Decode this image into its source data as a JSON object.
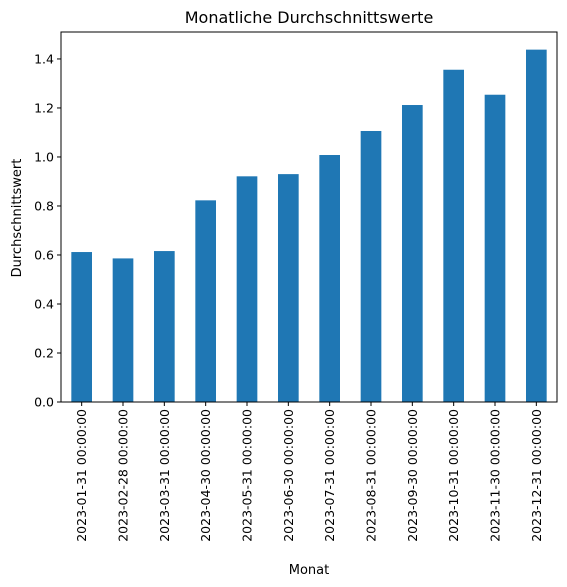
{
  "chart_data": {
    "type": "bar",
    "title": "Monatliche Durchschnittswerte",
    "xlabel": "Monat",
    "ylabel": "Durchschnittswert",
    "categories": [
      "2023-01-31 00:00:00",
      "2023-02-28 00:00:00",
      "2023-03-31 00:00:00",
      "2023-04-30 00:00:00",
      "2023-05-31 00:00:00",
      "2023-06-30 00:00:00",
      "2023-07-31 00:00:00",
      "2023-08-31 00:00:00",
      "2023-09-30 00:00:00",
      "2023-10-31 00:00:00",
      "2023-11-30 00:00:00",
      "2023-12-31 00:00:00"
    ],
    "values": [
      0.612,
      0.586,
      0.616,
      0.823,
      0.921,
      0.93,
      1.008,
      1.106,
      1.212,
      1.356,
      1.254,
      1.438
    ],
    "ylim": [
      0,
      1.51
    ],
    "yticks": [
      0.0,
      0.2,
      0.4,
      0.6,
      0.8,
      1.0,
      1.2,
      1.4
    ],
    "ytick_labels": [
      "0.0",
      "0.2",
      "0.4",
      "0.6",
      "0.8",
      "1.0",
      "1.2",
      "1.4"
    ],
    "grid": false,
    "legend": "none",
    "bar_color": "#1f77b4"
  }
}
